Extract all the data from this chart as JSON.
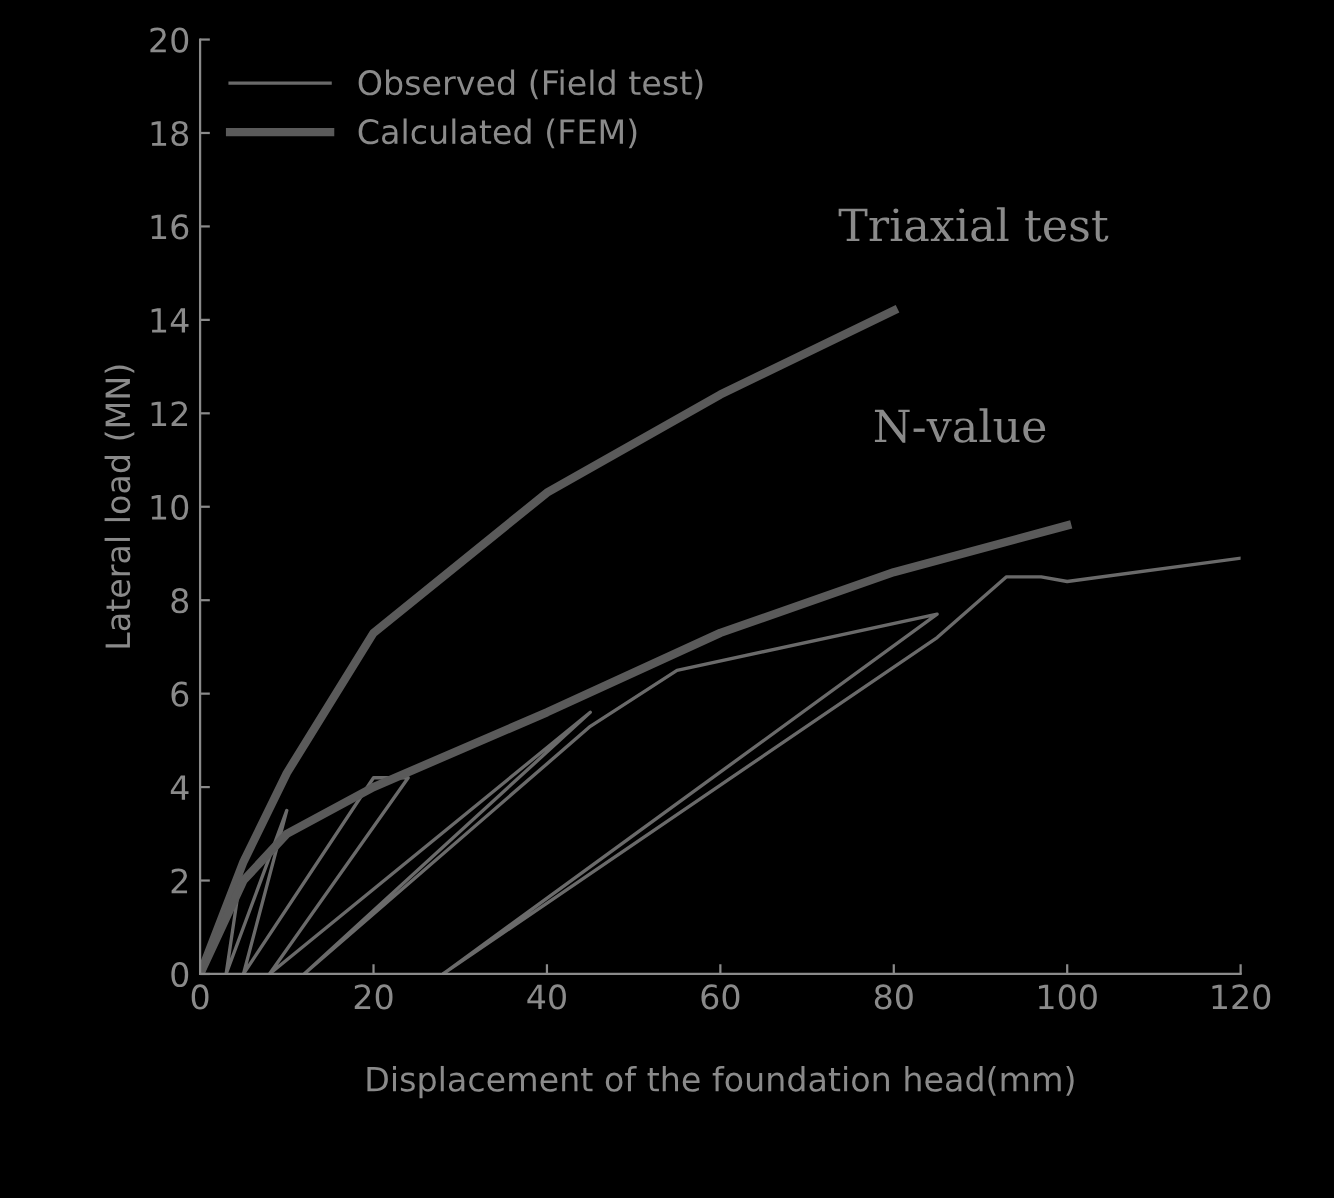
{
  "chart_data": {
    "type": "line",
    "xlabel": "Displacement of the foundation head(mm)",
    "ylabel": "Lateral load (MN)",
    "xlim": [
      0,
      120
    ],
    "ylim": [
      0,
      20
    ],
    "xticks": [
      0,
      20,
      40,
      60,
      80,
      100,
      120
    ],
    "yticks": [
      0,
      2,
      4,
      6,
      8,
      10,
      12,
      14,
      16,
      18,
      20
    ],
    "grid": false,
    "legend": "top left",
    "line_style": "solid",
    "marker": "none",
    "series": [
      {
        "name": "Observed (Field test)",
        "color": "#6a6a6a",
        "x": [
          0,
          5,
          3,
          10,
          5,
          20,
          24,
          8,
          45,
          12,
          45,
          55,
          85,
          28,
          85,
          93,
          97,
          100,
          120
        ],
        "values": [
          0,
          2.5,
          0,
          3.5,
          0,
          4.2,
          4.2,
          0,
          5.6,
          0,
          5.3,
          6.5,
          7.7,
          0,
          7.2,
          8.5,
          8.5,
          8.4,
          8.9
        ]
      },
      {
        "name": "Calculated (FEM)",
        "color": "#5a5a5a",
        "x": [
          0,
          5,
          10,
          20,
          40,
          60,
          80
        ],
        "values": [
          0,
          2.4,
          4.3,
          7.3,
          10.3,
          12.4,
          14.2
        ]
      },
      {
        "color": "#5a5a5a",
        "x": [
          0,
          5,
          10,
          20,
          40,
          60,
          80,
          100
        ],
        "values": [
          0,
          2,
          3,
          4,
          5.6,
          7.3,
          8.6,
          9.6
        ]
      }
    ],
    "annotations": [
      {
        "text": "Triaxial test",
        "x": 80,
        "y": 14.2
      },
      {
        "text": "N-value",
        "x": 100,
        "y": 9.6
      }
    ]
  }
}
